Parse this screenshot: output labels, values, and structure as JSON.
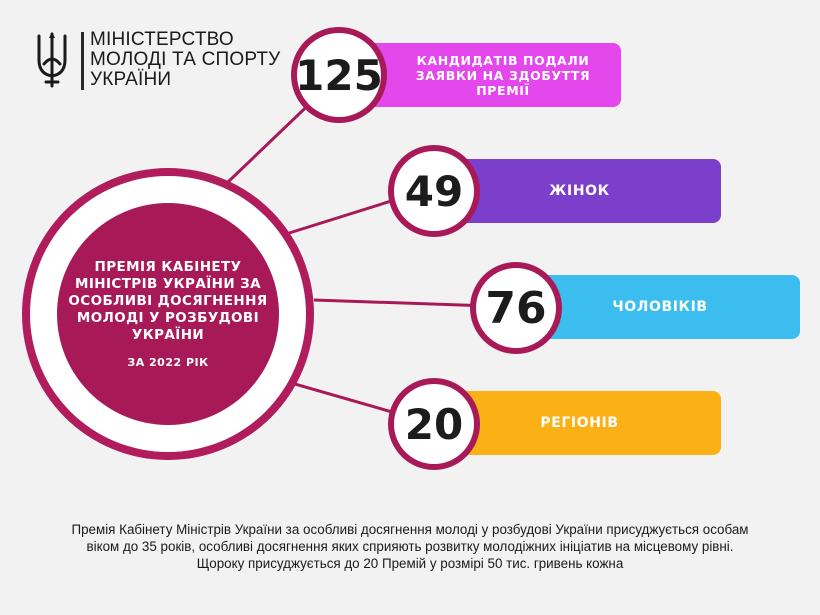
{
  "ministry": {
    "line1": "МІНІСТЕРСТВО",
    "line2": "МОЛОДІ ТА СПОРТУ",
    "line3": "УКРАЇНИ"
  },
  "award": {
    "title": "Премія Кабінету Міністрів України за особливі досягнення молоді у розбудові України",
    "year": "ЗА 2022 РІК"
  },
  "stats": [
    {
      "number": "125",
      "label": "КАНДИДАТІВ ПОДАЛИ ЗАЯВКИ НА ЗДОБУТТЯ ПРЕМІЇ",
      "color": "#e447ec"
    },
    {
      "number": "49",
      "label": "ЖІНОК",
      "color": "#7b3fcb"
    },
    {
      "number": "76",
      "label": "ЧОЛОВІКІВ",
      "color": "#3bbdf0"
    },
    {
      "number": "20",
      "label": "РЕГІОНІВ",
      "color": "#fbb016"
    }
  ],
  "footer": {
    "line1": "Премія Кабінету Міністрів України за особливі досягнення молоді у розбудові України присуджується особам",
    "line2": "віком до 35 років, особливі досягнення яких сприяють розвитку молодіжних ініціатив на місцевому рівні.",
    "line3": "Щороку присуджується до 20 Премій у розмірі 50 тис. гривень кожна"
  },
  "colors": {
    "accent": "#a81a57",
    "background": "#f3f2f2"
  },
  "icons": {
    "logo": "trident-icon"
  }
}
